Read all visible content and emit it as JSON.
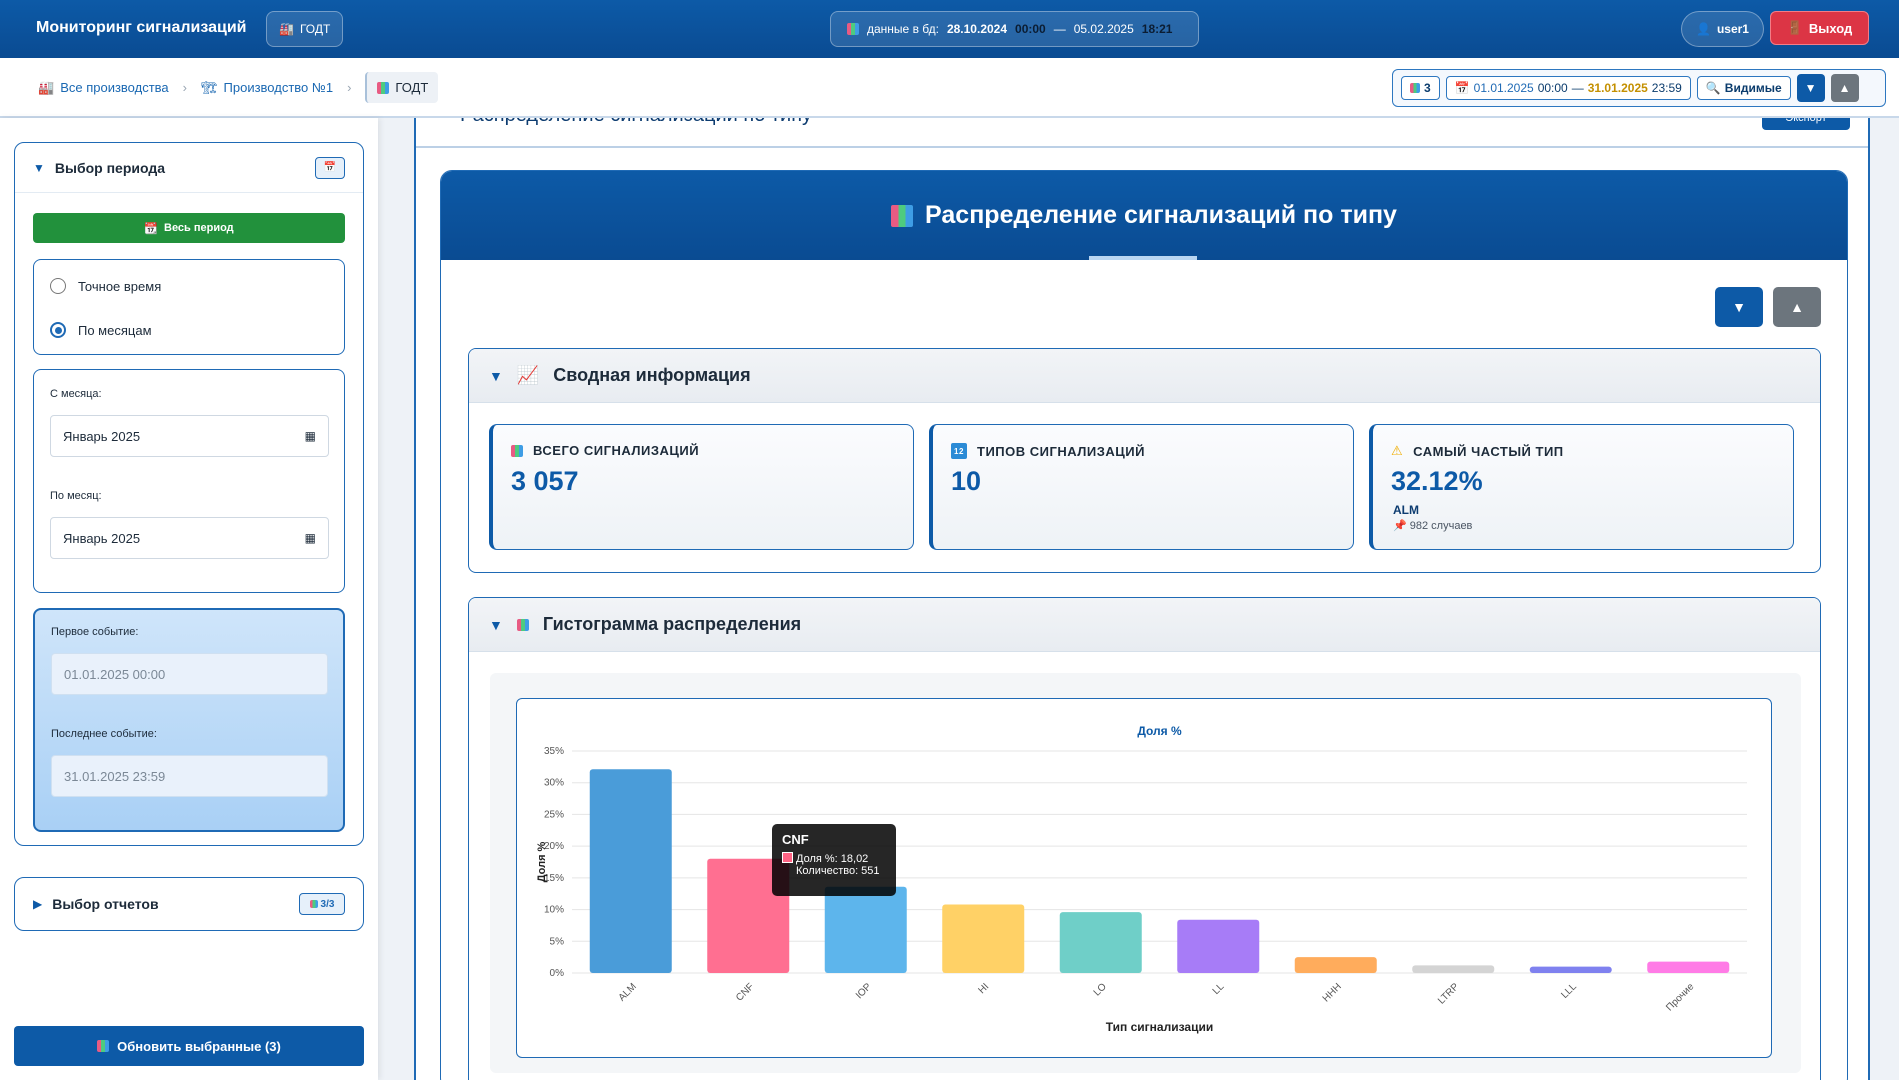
{
  "header": {
    "app_title": "Мониторинг сигнализаций",
    "godt_label": "ГОДТ",
    "db_label": "данные в бд:",
    "db_from_date": "28.10.2024",
    "db_from_time": "00:00",
    "db_dash": "—",
    "db_to_date": "05.02.2025",
    "db_to_time": "18:21",
    "user": "user1",
    "logout": "Выход"
  },
  "breadcrumbs": [
    "Все производства",
    "Производство №1",
    "ГОДТ"
  ],
  "toolbar": {
    "count": "3",
    "from_date": "01.01.2025",
    "from_time": "00:00",
    "dash": "—",
    "to_date": "31.01.2025",
    "to_time": "23:59",
    "visible": "Видимые"
  },
  "sidebar": {
    "period_title": "Выбор периода",
    "all_period": "Весь период",
    "radio_exact": "Точное время",
    "radio_months": "По месяцам",
    "from_month_label": "С месяца:",
    "from_month_value": "Январь 2025",
    "to_month_label": "По месяц:",
    "to_month_value": "Январь 2025",
    "first_event_label": "Первое событие:",
    "first_event_value": "01.01.2025 00:00",
    "last_event_label": "Последнее событие:",
    "last_event_value": "31.01.2025 23:59",
    "reports_title": "Выбор отчетов",
    "reports_badge": "3/3",
    "refresh": "Обновить выбранные (3)"
  },
  "main": {
    "cut_title": "Распределение сигнализаций по типу",
    "cut_button": "Экспорт",
    "panel_title": "Распределение сигнализаций по типу",
    "summary_title": "Сводная информация",
    "stats": [
      {
        "title": "ВСЕГО СИГНАЛИЗАЦИЙ",
        "value": "3 057"
      },
      {
        "title": "ТИПОВ СИГНАЛИЗАЦИЙ",
        "value": "10"
      },
      {
        "title": "САМЫЙ ЧАСТЫЙ ТИП",
        "value": "32.12%",
        "type": "ALM",
        "cases": "982 случаев"
      }
    ],
    "hist_title": "Гистограмма распределения"
  },
  "tooltip": {
    "title": "CNF",
    "line1": "Доля %: 18,02",
    "line2": "Количество: 551"
  },
  "chart_data": {
    "type": "bar",
    "title": "Доля %",
    "xlabel": "Тип сигнализации",
    "ylabel": "Доля %",
    "categories": [
      "ALM",
      "CNF",
      "IOP",
      "HI",
      "LO",
      "LL",
      "HHH",
      "LTRP",
      "LLL",
      "Прочие"
    ],
    "values": [
      32.12,
      18.02,
      13.6,
      10.8,
      9.6,
      8.4,
      2.5,
      1.2,
      1.0,
      1.8
    ],
    "ylim": [
      0,
      35
    ],
    "yticks": [
      "0%",
      "5%",
      "10%",
      "15%",
      "20%",
      "25%",
      "30%",
      "35%"
    ],
    "colors": [
      "#4a9cd9",
      "#ff6f91",
      "#5db5ec",
      "#ffd166",
      "#6fcfc8",
      "#a77cf7",
      "#ffac5c",
      "#d4d4d4",
      "#7f81ef",
      "#ff7be6"
    ]
  }
}
